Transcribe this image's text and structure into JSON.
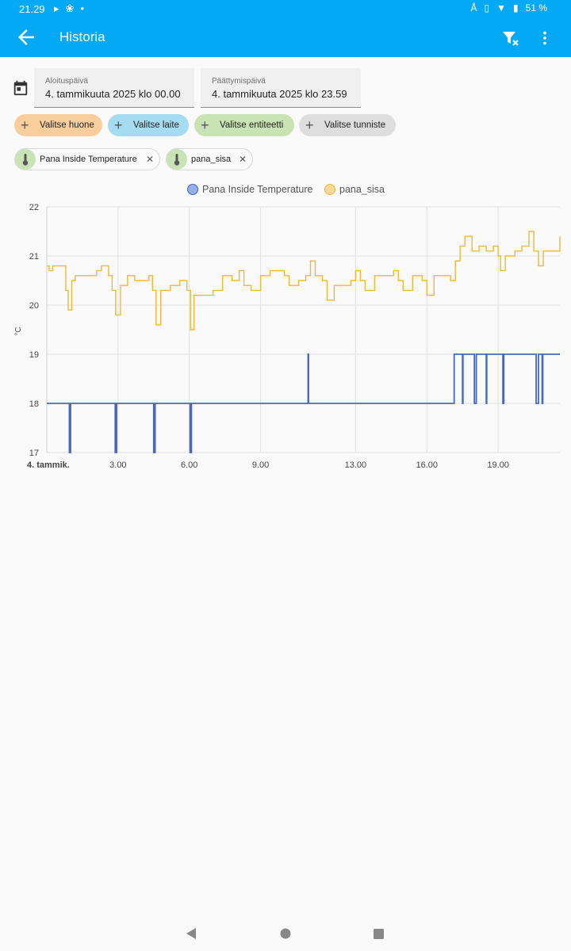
{
  "status": {
    "time": "21.29",
    "battery": "51 %"
  },
  "appbar": {
    "title": "Historia"
  },
  "dates": {
    "start_label": "Aloituspäivä",
    "start_value": "4. tammikuuta 2025 klo 00.00",
    "end_label": "Päättymispäivä",
    "end_value": "4. tammikuuta 2025 klo 23.59"
  },
  "filters": {
    "room": "Valitse huone",
    "device": "Valitse laite",
    "entity": "Valitse entiteetti",
    "label": "Valitse tunniste"
  },
  "entities": [
    {
      "name": "Pana Inside Temperature"
    },
    {
      "name": "pana_sisa"
    }
  ],
  "colors": {
    "accent": "#03a9f4",
    "series1": "#4468c4",
    "series2": "#f0b73a"
  },
  "chart_data": {
    "type": "line",
    "step": true,
    "xlabel": "",
    "ylabel": "°C",
    "xlim": [
      0,
      21.6
    ],
    "ylim": [
      17,
      22
    ],
    "yticks": [
      17,
      18,
      19,
      20,
      21,
      22
    ],
    "xticks": [
      {
        "x": 0,
        "label": "4. tammik.",
        "bold": true
      },
      {
        "x": 3,
        "label": "3.00"
      },
      {
        "x": 6,
        "label": "6.00"
      },
      {
        "x": 9,
        "label": "9.00"
      },
      {
        "x": 13,
        "label": "13.00"
      },
      {
        "x": 16,
        "label": "16.00"
      },
      {
        "x": 19,
        "label": "19.00"
      }
    ],
    "legend_position": "top-center",
    "grid": true,
    "series": [
      {
        "name": "Pana Inside Temperature",
        "color": "#4468c4",
        "points": [
          [
            0,
            18
          ],
          [
            0.95,
            18
          ],
          [
            0.95,
            17
          ],
          [
            1.0,
            17
          ],
          [
            1.0,
            18
          ],
          [
            2.88,
            18
          ],
          [
            2.88,
            17
          ],
          [
            2.94,
            17
          ],
          [
            2.94,
            18
          ],
          [
            4.5,
            18
          ],
          [
            4.5,
            17
          ],
          [
            4.56,
            17
          ],
          [
            4.56,
            18
          ],
          [
            6.03,
            18
          ],
          [
            6.03,
            17
          ],
          [
            6.09,
            17
          ],
          [
            6.09,
            18
          ],
          [
            11.0,
            18
          ],
          [
            11.0,
            19
          ],
          [
            11.02,
            19
          ],
          [
            11.02,
            18
          ],
          [
            17.15,
            18
          ],
          [
            17.15,
            19
          ],
          [
            17.5,
            19
          ],
          [
            17.5,
            18
          ],
          [
            17.52,
            18
          ],
          [
            17.52,
            19
          ],
          [
            18.0,
            19
          ],
          [
            18.0,
            18
          ],
          [
            18.08,
            18
          ],
          [
            18.08,
            19
          ],
          [
            18.5,
            19
          ],
          [
            18.5,
            18
          ],
          [
            18.52,
            18
          ],
          [
            18.52,
            19
          ],
          [
            19.2,
            19
          ],
          [
            19.2,
            18
          ],
          [
            19.24,
            18
          ],
          [
            19.24,
            19
          ],
          [
            20.6,
            19
          ],
          [
            20.6,
            18
          ],
          [
            20.7,
            18
          ],
          [
            20.7,
            19
          ],
          [
            20.85,
            19
          ],
          [
            20.85,
            18
          ],
          [
            20.88,
            18
          ],
          [
            20.88,
            19
          ],
          [
            21.6,
            19
          ]
        ]
      },
      {
        "name": "pana_sisa",
        "color": "#f0b73a",
        "points": [
          [
            0,
            20.8
          ],
          [
            0.1,
            20.7
          ],
          [
            0.25,
            20.8
          ],
          [
            0.7,
            20.8
          ],
          [
            0.8,
            20.3
          ],
          [
            0.9,
            19.9
          ],
          [
            1.05,
            20.5
          ],
          [
            1.2,
            20.6
          ],
          [
            1.8,
            20.6
          ],
          [
            2.1,
            20.7
          ],
          [
            2.3,
            20.8
          ],
          [
            2.6,
            20.6
          ],
          [
            2.75,
            20.3
          ],
          [
            2.9,
            19.8
          ],
          [
            3.1,
            20.4
          ],
          [
            3.4,
            20.6
          ],
          [
            3.7,
            20.5
          ],
          [
            4.3,
            20.6
          ],
          [
            4.45,
            20.3
          ],
          [
            4.6,
            19.6
          ],
          [
            4.8,
            20.3
          ],
          [
            5.2,
            20.4
          ],
          [
            5.6,
            20.5
          ],
          [
            5.9,
            20.3
          ],
          [
            6.05,
            19.5
          ],
          [
            6.2,
            20.2
          ],
          [
            6.6,
            20.2
          ],
          [
            7.0,
            20.3
          ],
          [
            7.4,
            20.6
          ],
          [
            7.8,
            20.5
          ],
          [
            8.1,
            20.7
          ],
          [
            8.3,
            20.4
          ],
          [
            8.6,
            20.3
          ],
          [
            9.0,
            20.6
          ],
          [
            9.4,
            20.7
          ],
          [
            9.8,
            20.7
          ],
          [
            10.0,
            20.6
          ],
          [
            10.2,
            20.4
          ],
          [
            10.6,
            20.5
          ],
          [
            10.9,
            20.6
          ],
          [
            11.1,
            20.9
          ],
          [
            11.3,
            20.6
          ],
          [
            11.6,
            20.5
          ],
          [
            11.8,
            20.1
          ],
          [
            12.1,
            20.4
          ],
          [
            12.5,
            20.4
          ],
          [
            12.8,
            20.5
          ],
          [
            13.0,
            20.7
          ],
          [
            13.2,
            20.5
          ],
          [
            13.4,
            20.3
          ],
          [
            13.8,
            20.6
          ],
          [
            14.2,
            20.6
          ],
          [
            14.6,
            20.7
          ],
          [
            14.8,
            20.5
          ],
          [
            15.0,
            20.3
          ],
          [
            15.4,
            20.6
          ],
          [
            15.8,
            20.5
          ],
          [
            16.0,
            20.2
          ],
          [
            16.3,
            20.6
          ],
          [
            16.7,
            20.6
          ],
          [
            17.0,
            20.5
          ],
          [
            17.2,
            20.9
          ],
          [
            17.4,
            21.2
          ],
          [
            17.6,
            21.4
          ],
          [
            17.9,
            21.1
          ],
          [
            18.2,
            21.2
          ],
          [
            18.5,
            21.1
          ],
          [
            18.8,
            21.2
          ],
          [
            19.0,
            21.0
          ],
          [
            19.1,
            20.7
          ],
          [
            19.3,
            21.0
          ],
          [
            19.7,
            21.1
          ],
          [
            20.0,
            21.2
          ],
          [
            20.3,
            21.5
          ],
          [
            20.5,
            21.1
          ],
          [
            20.7,
            20.8
          ],
          [
            20.9,
            21.1
          ],
          [
            21.3,
            21.1
          ],
          [
            21.6,
            21.4
          ]
        ]
      }
    ]
  }
}
